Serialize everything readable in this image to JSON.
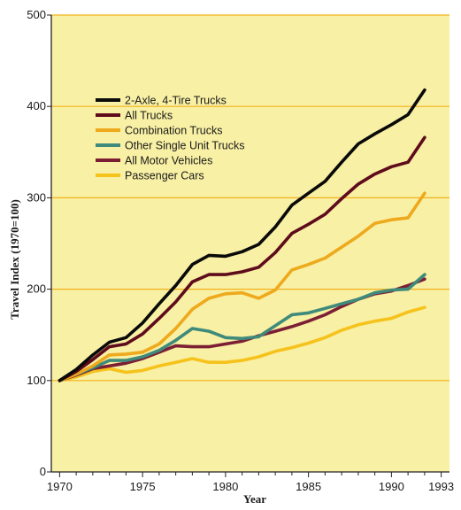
{
  "chart_data": {
    "type": "line",
    "title": "",
    "xlabel": "Year",
    "ylabel": "Travel Index (1970=100)",
    "xlim": [
      1969.5,
      1993.5
    ],
    "ylim": [
      0,
      500
    ],
    "x_ticks": [
      1970,
      1975,
      1980,
      1985,
      1990,
      1993
    ],
    "y_ticks": [
      0,
      100,
      200,
      300,
      400,
      500
    ],
    "grid": "horizontal",
    "legend_position": "top-left",
    "background_color": "#f8f0a4",
    "grid_color": "#f2b21a",
    "x": [
      1970,
      1971,
      1972,
      1973,
      1974,
      1975,
      1976,
      1977,
      1978,
      1979,
      1980,
      1981,
      1982,
      1983,
      1984,
      1985,
      1986,
      1987,
      1988,
      1989,
      1990,
      1991,
      1992
    ],
    "series": [
      {
        "name": "2-Axle, 4-Tire Trucks",
        "color": "#0a0a0a",
        "values": [
          100,
          112,
          128,
          142,
          147,
          163,
          184,
          204,
          227,
          237,
          236,
          241,
          249,
          268,
          292,
          305,
          318,
          339,
          359,
          370,
          380,
          391,
          418
        ]
      },
      {
        "name": "All Trucks",
        "color": "#5e0c1c",
        "values": [
          100,
          110,
          123,
          137,
          140,
          151,
          168,
          186,
          208,
          216,
          216,
          219,
          224,
          240,
          261,
          271,
          282,
          299,
          315,
          326,
          334,
          339,
          366
        ]
      },
      {
        "name": "Combination Trucks",
        "color": "#eea91d",
        "values": [
          100,
          107,
          116,
          128,
          129,
          131,
          140,
          157,
          178,
          190,
          195,
          196,
          190,
          199,
          221,
          227,
          234,
          246,
          258,
          272,
          276,
          278,
          305
        ]
      },
      {
        "name": "Other Single Unit Trucks",
        "color": "#3f8a7a",
        "values": [
          100,
          107,
          114,
          122,
          122,
          126,
          133,
          144,
          157,
          154,
          147,
          146,
          148,
          160,
          172,
          174,
          179,
          184,
          189,
          196,
          199,
          200,
          216
        ]
      },
      {
        "name": "All Motor Vehicles",
        "color": "#7c1f34",
        "values": [
          100,
          106,
          113,
          116,
          119,
          124,
          131,
          138,
          137,
          137,
          140,
          143,
          149,
          154,
          159,
          165,
          172,
          181,
          189,
          195,
          198,
          204,
          211
        ]
      },
      {
        "name": "Passenger Cars",
        "color": "#f6c21c",
        "values": [
          100,
          104,
          110,
          113,
          109,
          111,
          116,
          120,
          124,
          120,
          120,
          122,
          126,
          132,
          136,
          141,
          147,
          155,
          161,
          165,
          168,
          175,
          180
        ]
      }
    ]
  }
}
